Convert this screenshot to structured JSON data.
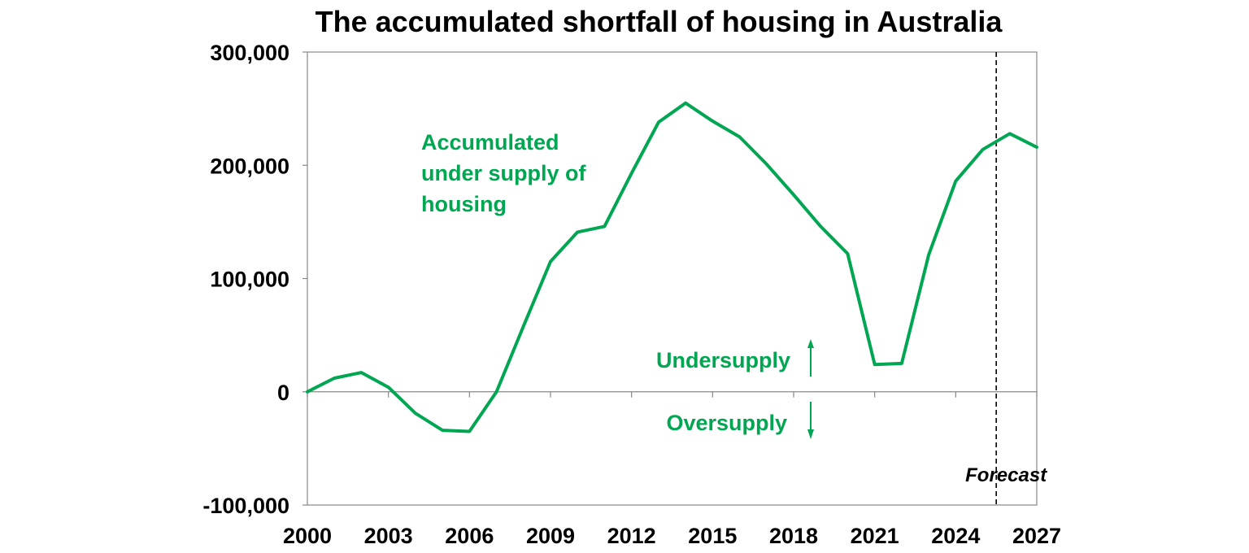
{
  "chart_data": {
    "type": "line",
    "title": "The accumulated shortfall of housing in Australia",
    "xlabel": "",
    "ylabel": "",
    "xlim": [
      2000,
      2027
    ],
    "ylim": [
      -100000,
      300000
    ],
    "x_ticks": [
      2000,
      2003,
      2006,
      2009,
      2012,
      2015,
      2018,
      2021,
      2024,
      2027
    ],
    "y_ticks": [
      -100000,
      0,
      100000,
      200000,
      300000
    ],
    "y_tick_labels": [
      "-100,000",
      "0",
      "100,000",
      "200,000",
      "300,000"
    ],
    "grid": false,
    "forecast_start": 2025.5,
    "forecast_label": "Forecast",
    "series": [
      {
        "color": "#00a651",
        "x": [
          2000,
          2001,
          2002,
          2003,
          2004,
          2005,
          2006,
          2007,
          2008,
          2009,
          2010,
          2011,
          2012,
          2013,
          2014,
          2015,
          2016,
          2017,
          2018,
          2019,
          2020,
          2021,
          2022,
          2023,
          2024,
          2025,
          2026,
          2027
        ],
        "y": [
          0,
          12000,
          17000,
          4000,
          -19000,
          -34000,
          -35000,
          0,
          58000,
          115000,
          141000,
          146000,
          193000,
          238000,
          255000,
          239000,
          225000,
          201000,
          174000,
          146000,
          122000,
          24000,
          25000,
          121000,
          186000,
          214000,
          228000,
          216000
        ]
      }
    ],
    "annotations": {
      "series_label": [
        "Accumulated",
        "under supply of",
        "housing"
      ],
      "undersupply": "Undersupply",
      "oversupply": "Oversupply"
    }
  }
}
